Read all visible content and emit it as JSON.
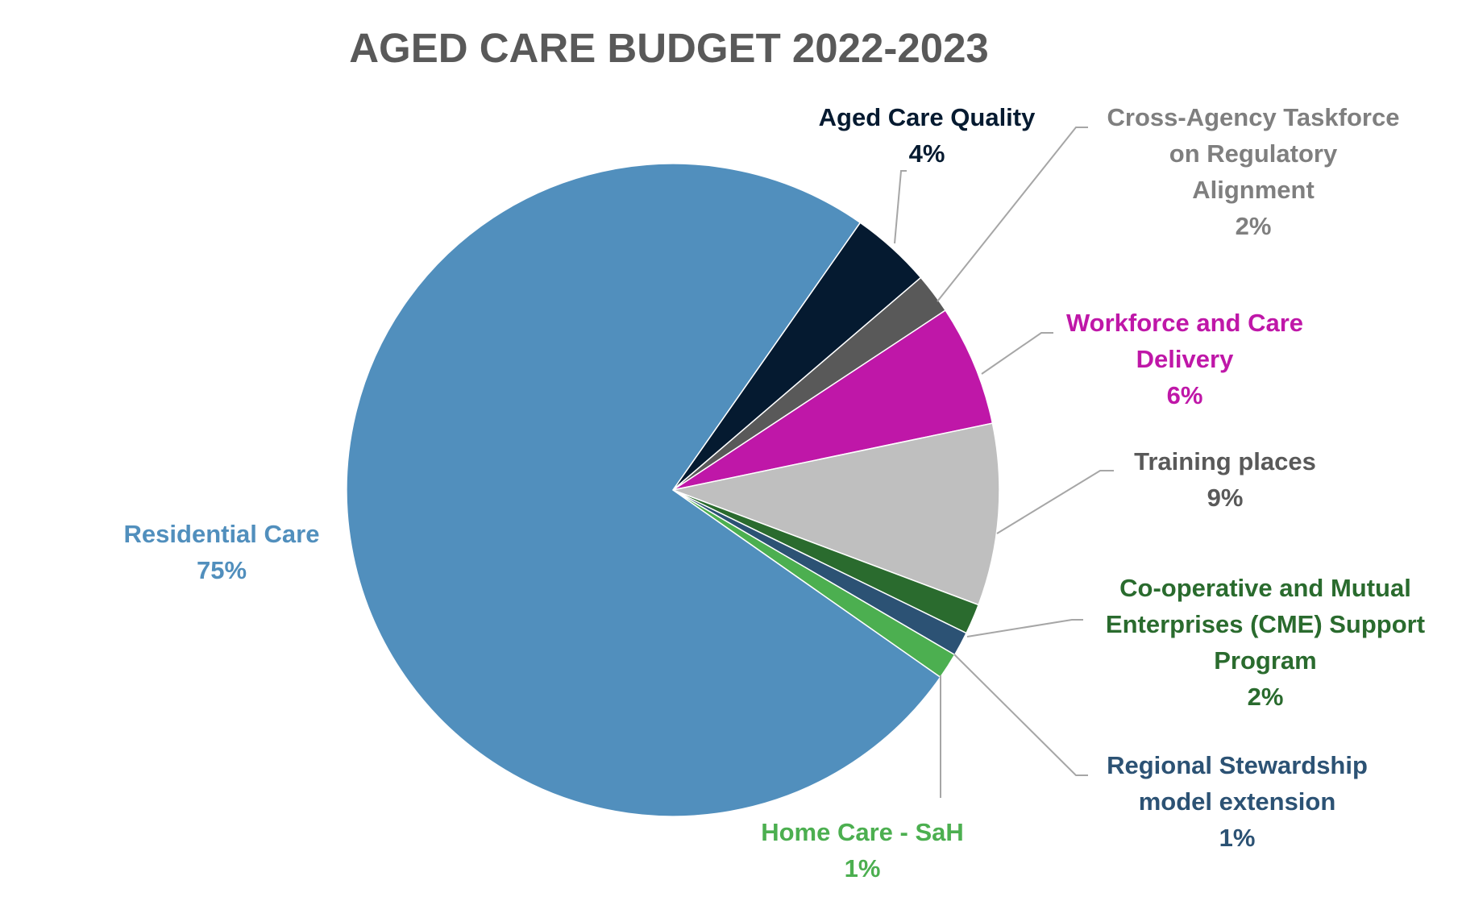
{
  "chart_data": {
    "type": "pie",
    "title": "AGED CARE BUDGET 2022-2023",
    "slices": [
      {
        "key": "quality",
        "label": "Aged Care Quality",
        "value": 4,
        "display": "4%",
        "color": "#051a30",
        "label_color": "#051a30"
      },
      {
        "key": "taskforce",
        "label": "Cross-Agency Taskforce on Regulatory Alignment",
        "value": 2,
        "display": "2%",
        "color": "#595959",
        "label_color": "#7f7f7f"
      },
      {
        "key": "workforce",
        "label": "Workforce and Care Delivery",
        "value": 6,
        "display": "6%",
        "color": "#bf17a8",
        "label_color": "#bf17a8"
      },
      {
        "key": "training",
        "label": "Training places",
        "value": 9,
        "display": "9%",
        "color": "#bfbfbf",
        "label_color": "#595959"
      },
      {
        "key": "cme",
        "label": "Co-operative and Mutual Enterprises (CME) Support Program",
        "value": 1.5,
        "display": "2%",
        "color": "#2a6b2e",
        "label_color": "#2a6b2e"
      },
      {
        "key": "regional",
        "label": "Regional Stewardship model extension",
        "value": 1.2,
        "display": "1%",
        "color": "#2c5274",
        "label_color": "#2c5274"
      },
      {
        "key": "home",
        "label": "Home Care - SaH",
        "value": 1.3,
        "display": "1%",
        "color": "#4caf50",
        "label_color": "#4caf50"
      },
      {
        "key": "residential",
        "label": "Residential Care",
        "value": 75,
        "display": "75%",
        "color": "#518fbd",
        "label_color": "#518fbd"
      }
    ],
    "start_angle_deg": 35,
    "legend": "none"
  },
  "labels": {
    "quality": [
      "Aged Care Quality",
      "4%"
    ],
    "taskforce": [
      "Cross-Agency Taskforce",
      "on Regulatory",
      "Alignment",
      "2%"
    ],
    "workforce": [
      "Workforce and Care",
      "Delivery",
      "6%"
    ],
    "training": [
      "Training places",
      "9%"
    ],
    "cme": [
      "Co-operative and Mutual",
      "Enterprises (CME) Support",
      "Program",
      "2%"
    ],
    "regional": [
      "Regional Stewardship",
      "model extension",
      "1%"
    ],
    "home": [
      "Home Care - SaH",
      "1%"
    ],
    "residential": [
      "Residential Care",
      "75%"
    ]
  }
}
